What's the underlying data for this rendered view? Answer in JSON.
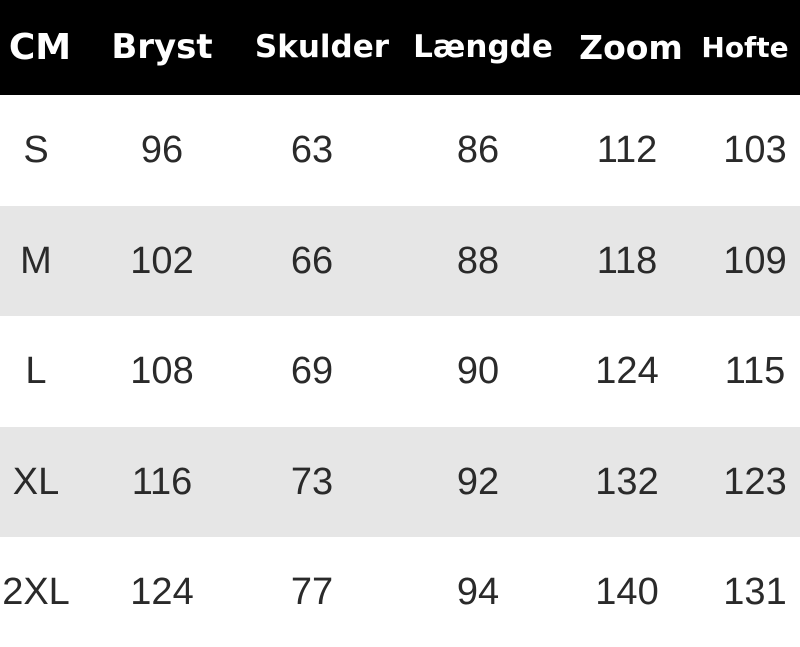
{
  "table": {
    "headers": [
      "CM",
      "Bryst",
      "Skulder",
      "Længde",
      "Zoom",
      "Hofte"
    ],
    "rows": [
      [
        "S",
        "96",
        "63",
        "86",
        "112",
        "103"
      ],
      [
        "M",
        "102",
        "66",
        "88",
        "118",
        "109"
      ],
      [
        "L",
        "108",
        "69",
        "90",
        "124",
        "115"
      ],
      [
        "XL",
        "116",
        "73",
        "92",
        "132",
        "123"
      ],
      [
        "2XL",
        "124",
        "77",
        "94",
        "140",
        "131"
      ]
    ]
  },
  "colors": {
    "header_bg": "#000000",
    "header_text": "#ffffff",
    "stripe": "#e6e6e6",
    "text": "#2a2a2a"
  }
}
